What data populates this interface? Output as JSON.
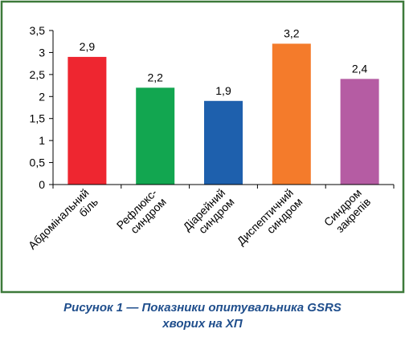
{
  "caption": {
    "line1": "Рисунок 1 — Показники опитувальника GSRS",
    "line2": "хворих на ХП"
  },
  "colors": {
    "frame": "#3d7a3a",
    "axis": "#000000",
    "text": "#000000",
    "caption": "#1f4e8c"
  },
  "chart_data": {
    "type": "bar",
    "categories": [
      [
        "Абдомінальний",
        "біль"
      ],
      [
        "Рефлюкс-",
        "синдром"
      ],
      [
        "Діарейний",
        "синдром"
      ],
      [
        "Диспептичний",
        "синдром"
      ],
      [
        "Синдром",
        "закрепів"
      ]
    ],
    "values": [
      2.9,
      2.2,
      1.9,
      3.2,
      2.4
    ],
    "value_labels": [
      "2,9",
      "2,2",
      "1,9",
      "3,2",
      "2,4"
    ],
    "bar_colors": [
      "#ee2630",
      "#12a650",
      "#1e60ad",
      "#f47b2b",
      "#b55ca3"
    ],
    "y_ticks": [
      0,
      0.5,
      1,
      1.5,
      2,
      2.5,
      3,
      3.5
    ],
    "y_tick_labels": [
      "0",
      "0,5",
      "1",
      "1,5",
      "2",
      "2,5",
      "3",
      "3,5"
    ],
    "ylim": [
      0,
      3.5
    ],
    "grid": false,
    "legend": "none",
    "x_label_rotation": "-45deg"
  }
}
